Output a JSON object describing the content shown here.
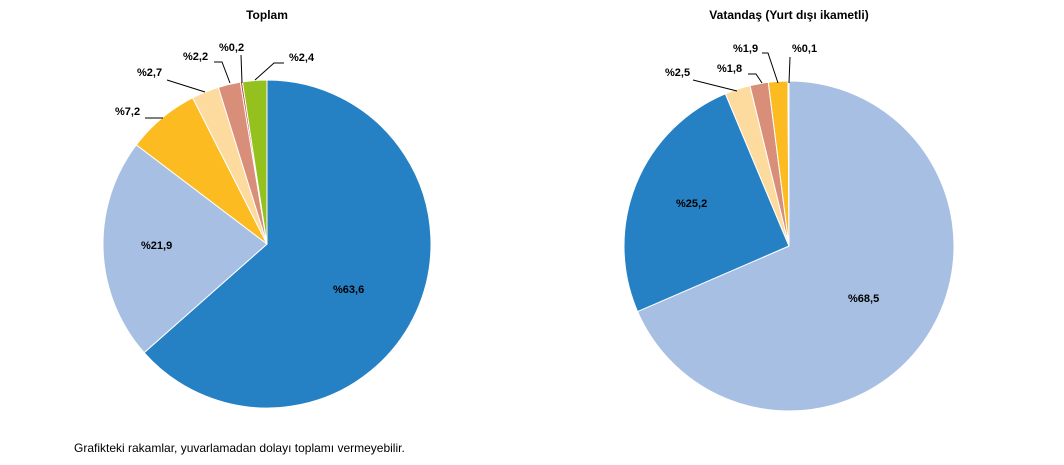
{
  "chart_data": [
    {
      "type": "pie",
      "title": "Toplam",
      "start": "top",
      "direction": "clockwise",
      "values": [
        63.6,
        21.9,
        7.2,
        2.7,
        2.2,
        0.2,
        2.4
      ],
      "labels": [
        "%63,6",
        "%21,9",
        "%7,2",
        "%2,7",
        "%2,2",
        "%0,2",
        "%2,4"
      ],
      "colors": [
        "#2681C4",
        "#A6BFE3",
        "#FDBB22",
        "#FDDA9E",
        "#D88E78",
        "#C0392B",
        "#95C11F"
      ]
    },
    {
      "type": "pie",
      "title": "Vatandaş (Yurt dışı ikametli)",
      "start": "top",
      "direction": "clockwise",
      "values": [
        68.5,
        25.2,
        2.5,
        1.8,
        1.9,
        0.1
      ],
      "labels": [
        "%68,5",
        "%25,2",
        "%2,5",
        "%1,8",
        "%1,9",
        "%0,1"
      ],
      "colors": [
        "#A6BFE3",
        "#2681C4",
        "#FDDA9E",
        "#D88E78",
        "#FDBB22",
        "#C0392B"
      ]
    }
  ],
  "footnote": "Grafikteki rakamlar, yuvarlamadan dolayı toplamı vermeyebilir."
}
